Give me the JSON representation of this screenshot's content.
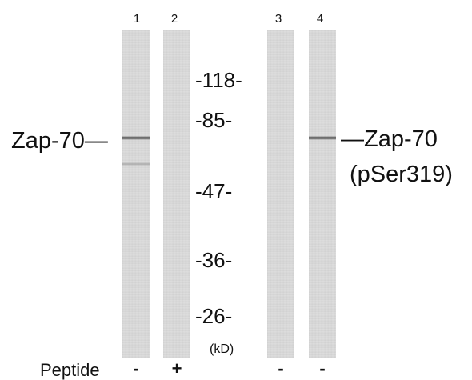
{
  "lane_numbers": [
    "1",
    "2",
    "3",
    "4"
  ],
  "mw_markers": [
    "-118-",
    "-85-",
    "-47-",
    "-36-",
    "-26-"
  ],
  "unit_label": "(kD)",
  "left_label": "Zap-70—",
  "right_label_line1": "—Zap-70",
  "right_label_line2": "(pSer319)",
  "peptide_label": "Peptide",
  "peptide_signs": [
    "-",
    "+",
    "-",
    "-"
  ],
  "colors": {
    "lane_background": "#dcdcdc",
    "band": "#4a4a4a",
    "text": "#111111"
  }
}
